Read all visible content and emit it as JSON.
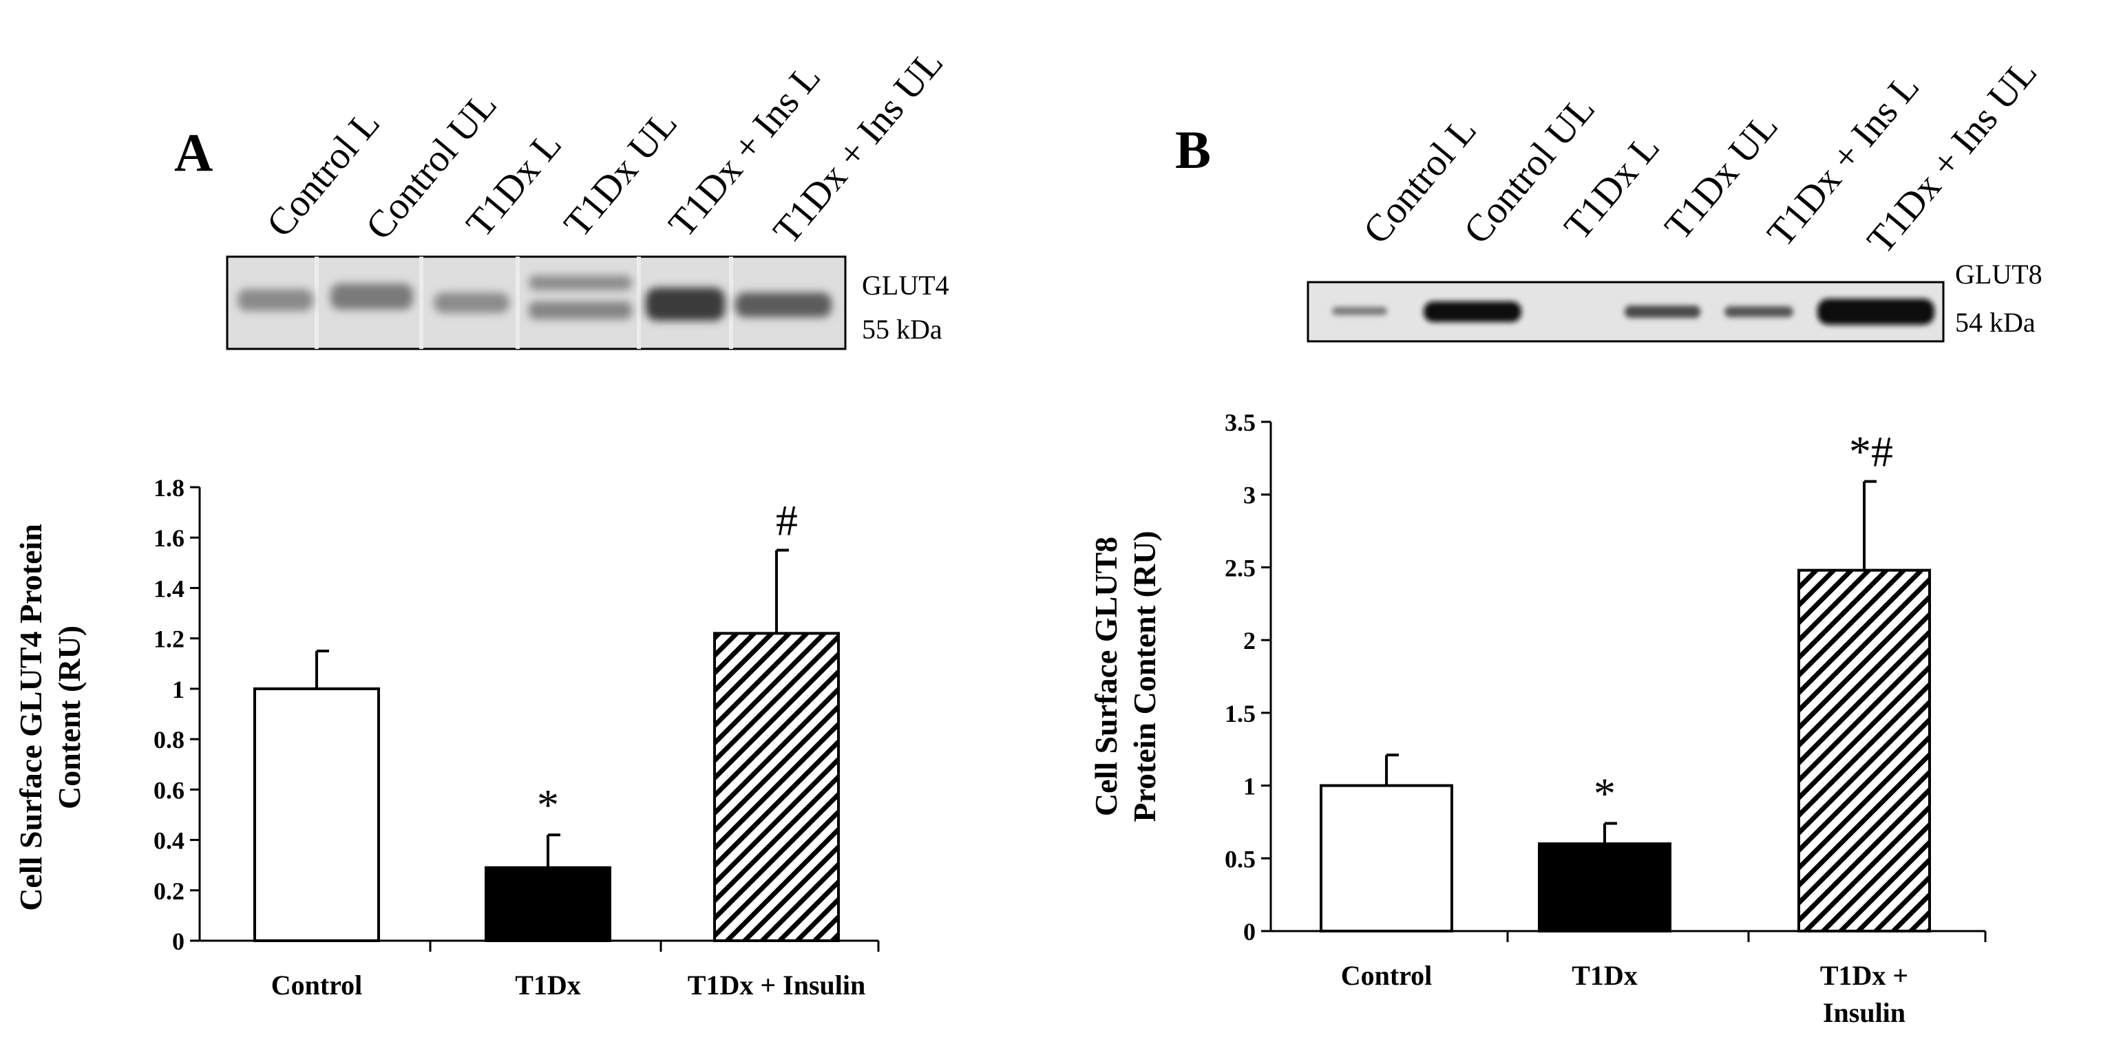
{
  "colors": {
    "control_fill": "#ffffff",
    "t1dx_fill": "#000000",
    "insulin_fill": "hatched-diagonal",
    "axis": "#000000",
    "blot_background": "#dcdcdc"
  },
  "panels": [
    {
      "letter": "A",
      "lane_labels": [
        "Control L",
        "Control UL",
        "T1Dx L",
        "T1Dx UL",
        "T1Dx + Ins L",
        "T1Dx + Ins UL"
      ],
      "blot_label": "GLUT4",
      "blot_kda": "55 kDa"
    },
    {
      "letter": "B",
      "lane_labels": [
        "Control L",
        "Control UL",
        "T1Dx L",
        "T1Dx UL",
        "T1Dx + Ins L",
        "T1Dx + Ins UL"
      ],
      "blot_label": "GLUT8",
      "blot_kda": "54 kDa"
    }
  ],
  "chart_data": [
    {
      "type": "bar",
      "title": "",
      "ylabel": "Cell Surface GLUT4 Protein Content (RU)",
      "xlabel": "",
      "categories": [
        "Control",
        "T1Dx",
        "T1Dx + Insulin"
      ],
      "values": [
        1.0,
        0.29,
        1.22
      ],
      "errors": [
        0.15,
        0.13,
        0.33
      ],
      "annotations": [
        "",
        "*",
        "#"
      ],
      "ylim": [
        0,
        1.8
      ],
      "yticks": [
        0,
        0.2,
        0.4,
        0.6,
        0.8,
        1,
        1.2,
        1.4,
        1.6,
        1.8
      ],
      "ytick_labels": [
        "0",
        "0.2",
        "0.4",
        "0.6",
        "0.8",
        "1",
        "1.2",
        "1.4",
        "1.6",
        "1.8"
      ],
      "grid": false
    },
    {
      "type": "bar",
      "title": "",
      "ylabel": "Cell Surface GLUT8 Protein Content (RU)",
      "xlabel": "",
      "categories": [
        "Control",
        "T1Dx",
        "T1Dx + Insulin"
      ],
      "values": [
        1.0,
        0.6,
        2.48
      ],
      "errors": [
        0.21,
        0.14,
        0.61
      ],
      "annotations": [
        "",
        "*",
        "*#"
      ],
      "ylim": [
        0,
        3.5
      ],
      "yticks": [
        0,
        0.5,
        1,
        1.5,
        2,
        2.5,
        3,
        3.5
      ],
      "ytick_labels": [
        "0",
        "0.5",
        "1",
        "1.5",
        "2",
        "2.5",
        "3",
        "3.5"
      ],
      "grid": false
    }
  ]
}
